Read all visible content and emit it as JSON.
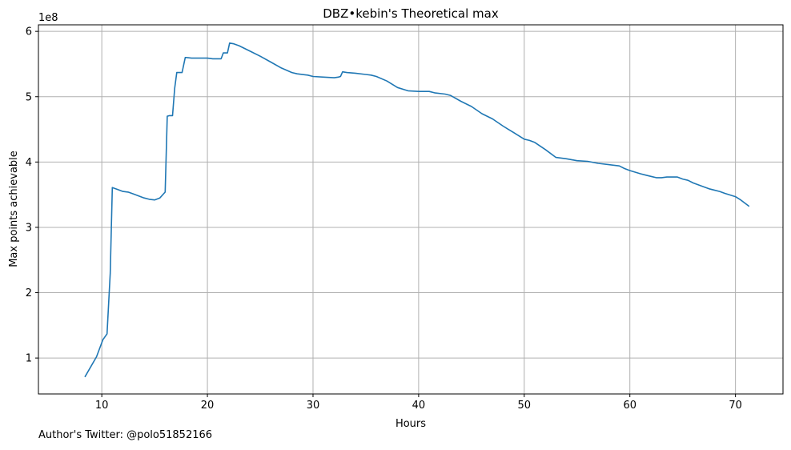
{
  "chart_data": {
    "type": "line",
    "title": "DBZ•kebin's Theoretical max",
    "xlabel": "Hours",
    "ylabel": "Max points achievable",
    "y_offset_label": "1e8",
    "xlim": [
      4,
      74.5
    ],
    "ylim": [
      0.45,
      6.1
    ],
    "x_ticks": [
      10,
      20,
      30,
      40,
      50,
      60,
      70
    ],
    "y_ticks": [
      1,
      2,
      3,
      4,
      5,
      6
    ],
    "grid": true,
    "line_color": "#1f77b4",
    "series": [
      {
        "x": [
          8.4,
          9.5,
          10.1,
          10.5,
          10.8,
          11.0,
          11.5,
          12.0,
          12.5,
          13.0,
          13.5,
          14.0,
          14.5,
          15.0,
          15.5,
          16.0,
          16.2,
          16.4,
          16.7,
          16.9,
          17.1,
          17.3,
          17.6,
          17.9,
          18.0,
          18.5,
          19.0,
          19.5,
          20.0,
          20.5,
          21.0,
          21.3,
          21.5,
          21.9,
          22.1,
          22.5,
          23.0,
          24.0,
          25.0,
          26.0,
          27.0,
          28.0,
          28.5,
          29.5,
          30.0,
          31.0,
          32.0,
          32.4,
          32.6,
          32.8,
          33.2,
          34.0,
          35.0,
          35.5,
          36.0,
          37.0,
          38.0,
          39.0,
          40.0,
          41.0,
          41.5,
          42.5,
          43.0,
          44.0,
          45.0,
          46.0,
          47.0,
          48.0,
          49.0,
          50.0,
          50.5,
          51.0,
          52.0,
          53.0,
          54.0,
          55.0,
          56.0,
          57.0,
          58.0,
          59.0,
          59.5,
          60.0,
          61.0,
          61.5,
          62.0,
          62.5,
          63.0,
          63.5,
          64.5,
          65.0,
          65.5,
          66.0,
          67.0,
          67.5,
          68.5,
          69.0,
          70.0,
          70.5,
          71.3
        ],
        "values": [
          0.71,
          1.02,
          1.28,
          1.37,
          2.3,
          3.61,
          3.58,
          3.55,
          3.54,
          3.51,
          3.48,
          3.45,
          3.43,
          3.42,
          3.45,
          3.54,
          4.7,
          4.71,
          4.71,
          5.13,
          5.37,
          5.37,
          5.37,
          5.6,
          5.6,
          5.59,
          5.59,
          5.59,
          5.59,
          5.58,
          5.58,
          5.58,
          5.67,
          5.67,
          5.82,
          5.81,
          5.78,
          5.7,
          5.62,
          5.53,
          5.44,
          5.37,
          5.35,
          5.33,
          5.31,
          5.3,
          5.29,
          5.3,
          5.31,
          5.38,
          5.37,
          5.36,
          5.34,
          5.33,
          5.31,
          5.24,
          5.14,
          5.09,
          5.08,
          5.08,
          5.06,
          5.04,
          5.02,
          4.93,
          4.85,
          4.74,
          4.66,
          4.55,
          4.45,
          4.35,
          4.33,
          4.3,
          4.19,
          4.07,
          4.05,
          4.02,
          4.01,
          3.98,
          3.96,
          3.94,
          3.9,
          3.87,
          3.82,
          3.8,
          3.78,
          3.76,
          3.76,
          3.77,
          3.77,
          3.74,
          3.72,
          3.68,
          3.62,
          3.59,
          3.55,
          3.52,
          3.47,
          3.42,
          3.32
        ]
      }
    ]
  },
  "footnote": "Author's Twitter: @polo51852166"
}
